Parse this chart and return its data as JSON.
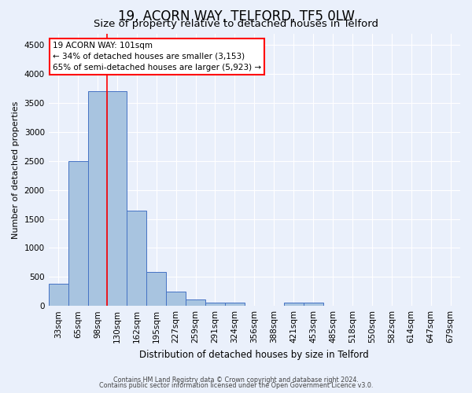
{
  "title1": "19, ACORN WAY, TELFORD, TF5 0LW",
  "title2": "Size of property relative to detached houses in Telford",
  "xlabel": "Distribution of detached houses by size in Telford",
  "ylabel": "Number of detached properties",
  "categories": [
    "33sqm",
    "65sqm",
    "98sqm",
    "130sqm",
    "162sqm",
    "195sqm",
    "227sqm",
    "259sqm",
    "291sqm",
    "324sqm",
    "356sqm",
    "388sqm",
    "421sqm",
    "453sqm",
    "485sqm",
    "518sqm",
    "550sqm",
    "582sqm",
    "614sqm",
    "647sqm",
    "679sqm"
  ],
  "values": [
    380,
    2500,
    3700,
    3700,
    1640,
    580,
    240,
    110,
    60,
    50,
    0,
    0,
    60,
    50,
    0,
    0,
    0,
    0,
    0,
    0,
    0
  ],
  "bar_color": "#a8c4e0",
  "bar_edge_color": "#4472c4",
  "red_line_index": 2,
  "annotation_title": "19 ACORN WAY: 101sqm",
  "annotation_line1": "← 34% of detached houses are smaller (3,153)",
  "annotation_line2": "65% of semi-detached houses are larger (5,923) →",
  "ylim": [
    0,
    4700
  ],
  "yticks": [
    0,
    500,
    1000,
    1500,
    2000,
    2500,
    3000,
    3500,
    4000,
    4500
  ],
  "bg_color": "#eaf0fb",
  "grid_color": "#ffffff",
  "footer1": "Contains HM Land Registry data © Crown copyright and database right 2024.",
  "footer2": "Contains public sector information licensed under the Open Government Licence v3.0.",
  "title1_fontsize": 12,
  "title2_fontsize": 9.5,
  "xlabel_fontsize": 8.5,
  "ylabel_fontsize": 8,
  "tick_fontsize": 7.5,
  "ann_fontsize": 7.5,
  "footer_fontsize": 5.8
}
